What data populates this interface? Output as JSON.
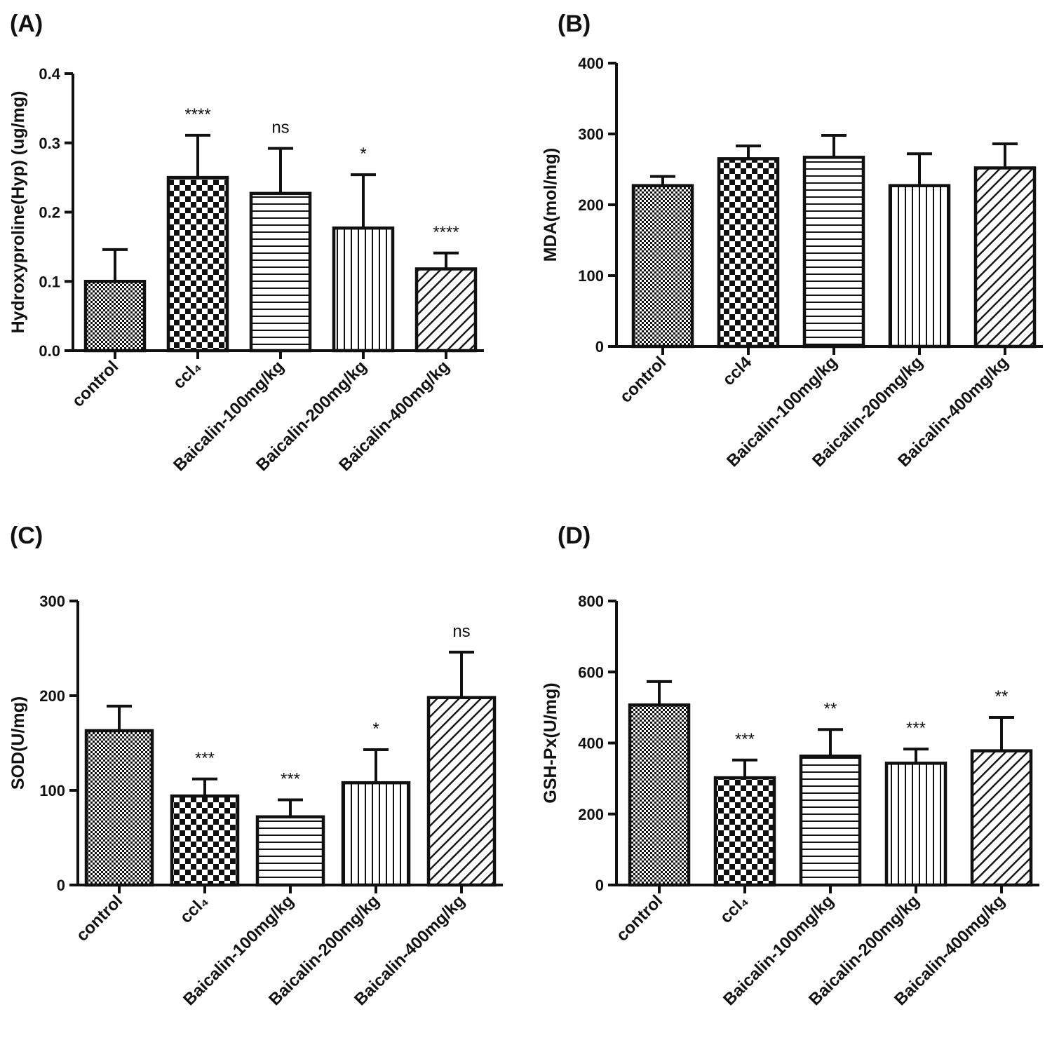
{
  "figure": {
    "panels": [
      "(A)",
      "(B)",
      "(C)",
      "(D)"
    ]
  },
  "chart_data": [
    {
      "type": "bar",
      "panel": "(A)",
      "categories": [
        "control",
        "ccl₄",
        "Baicalin-100mg/kg",
        "Baicalin-200mg/kg",
        "Baicalin-400mg/kg"
      ],
      "values": [
        0.1,
        0.25,
        0.227,
        0.177,
        0.118
      ],
      "errors": [
        0.046,
        0.061,
        0.065,
        0.077,
        0.023
      ],
      "significance": [
        "",
        "****",
        "ns",
        "*",
        "****"
      ],
      "patterns": [
        "fine-check",
        "check",
        "horizontal",
        "vertical",
        "diagonal"
      ],
      "ylabel": "Hydroxyproline(Hyp) (ug/mg)",
      "ylim": [
        0,
        0.4
      ],
      "yticks": [
        "0.0",
        "0.1",
        "0.2",
        "0.3",
        "0.4"
      ]
    },
    {
      "type": "bar",
      "panel": "(B)",
      "categories": [
        "control",
        "ccl4",
        "Baicalin-100mg/kg",
        "Baicalin-200mg/kg",
        "Baicalin-400mg/kg"
      ],
      "values": [
        227,
        265,
        267,
        227,
        252
      ],
      "errors": [
        13,
        18,
        31,
        45,
        34
      ],
      "significance": [
        "",
        "",
        "",
        "",
        ""
      ],
      "patterns": [
        "fine-check",
        "check",
        "horizontal",
        "vertical",
        "diagonal"
      ],
      "ylabel": "MDA(mol/mg)",
      "ylim": [
        0,
        400
      ],
      "yticks": [
        "0",
        "100",
        "200",
        "300",
        "400"
      ]
    },
    {
      "type": "bar",
      "panel": "(C)",
      "categories": [
        "control",
        "ccl₄",
        "Baicalin-100mg/kg",
        "Baicalin-200mg/kg",
        "Baicalin-400mg/kg"
      ],
      "values": [
        163,
        94,
        72,
        108,
        198
      ],
      "errors": [
        26,
        18,
        18,
        35,
        48
      ],
      "significance": [
        "",
        "***",
        "***",
        "*",
        "ns"
      ],
      "patterns": [
        "fine-check",
        "check",
        "horizontal",
        "vertical",
        "diagonal"
      ],
      "ylabel": "SOD(U/mg)",
      "ylim": [
        0,
        300
      ],
      "yticks": [
        "0",
        "100",
        "200",
        "300"
      ]
    },
    {
      "type": "bar",
      "panel": "(D)",
      "categories": [
        "control",
        "ccl₄",
        "Baicalin-100mg/kg",
        "Baicalin-200mg/kg",
        "Baicalin-400mg/kg"
      ],
      "values": [
        507,
        302,
        363,
        343,
        378
      ],
      "errors": [
        66,
        50,
        75,
        40,
        94
      ],
      "significance": [
        "",
        "***",
        "**",
        "***",
        "**"
      ],
      "patterns": [
        "fine-check",
        "check",
        "horizontal",
        "vertical",
        "diagonal"
      ],
      "ylabel": "GSH-Px(U/mg)",
      "ylim": [
        0,
        800
      ],
      "yticks": [
        "0",
        "200",
        "400",
        "600",
        "800"
      ]
    }
  ]
}
